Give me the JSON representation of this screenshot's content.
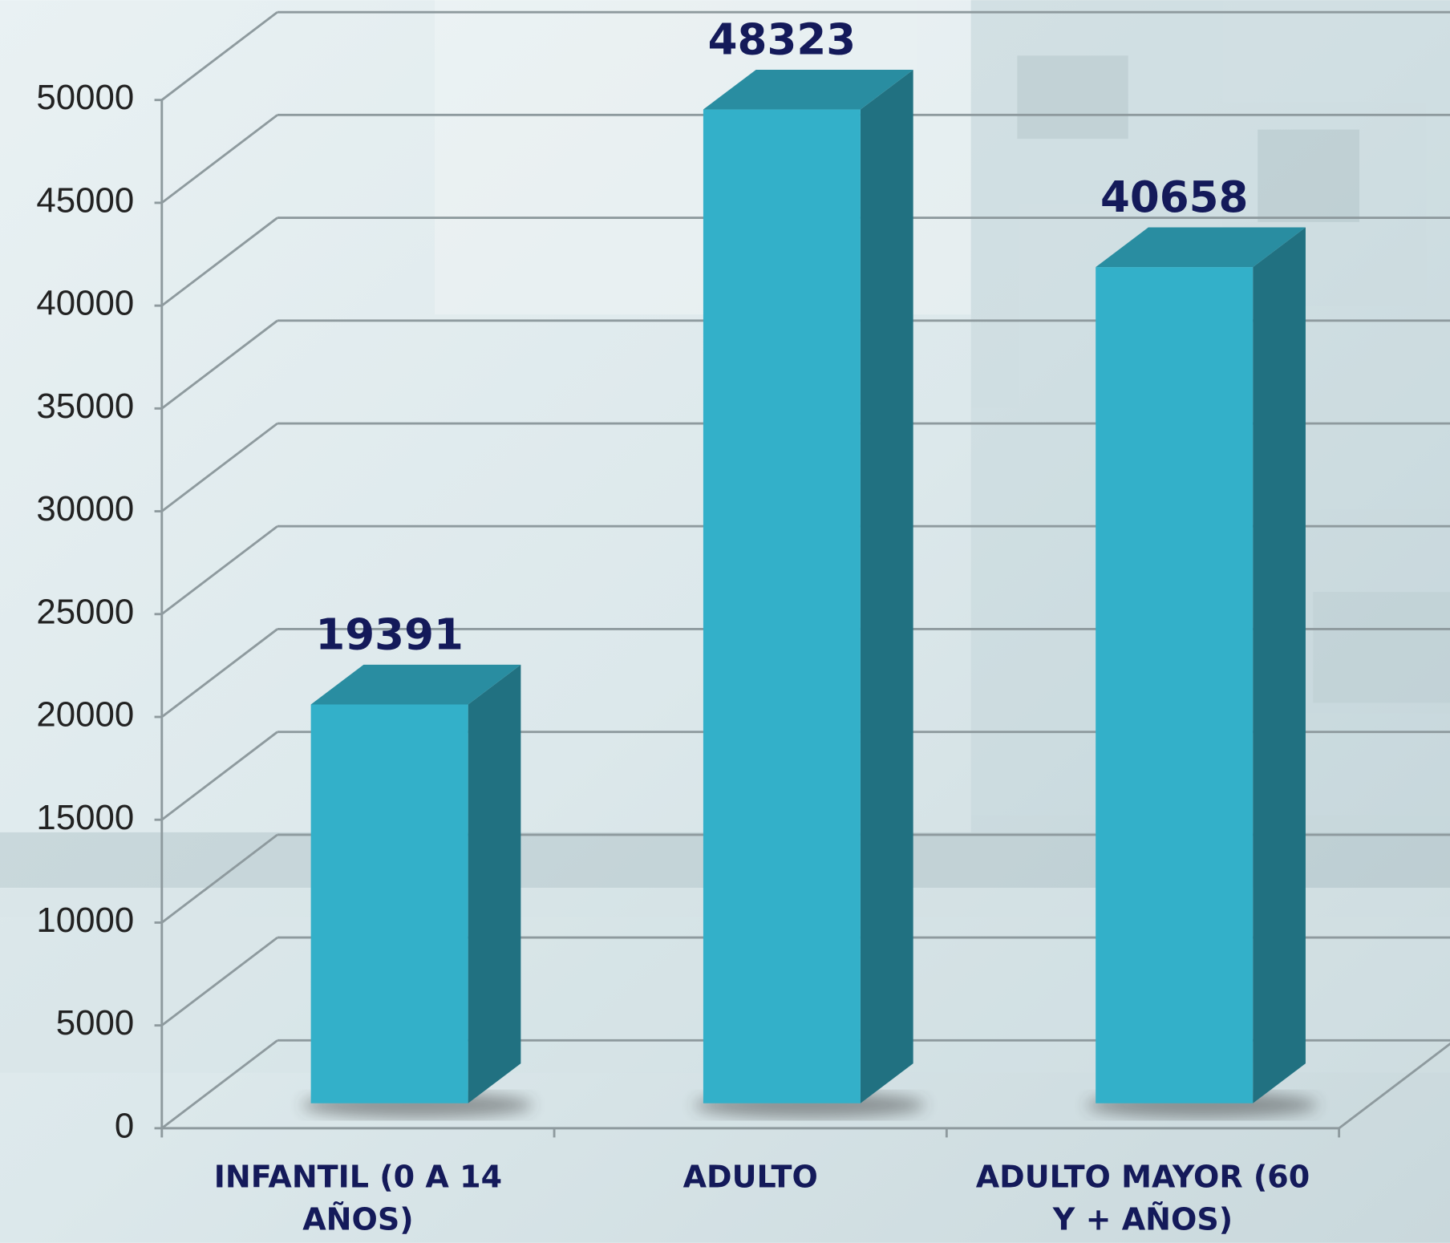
{
  "chart_data": {
    "type": "bar3d",
    "categories": [
      "INFANTIL (0 A 14 AÑOS)",
      "ADULTO",
      "ADULTO MAYOR (60 Y + AÑOS)"
    ],
    "values": [
      19391,
      48323,
      40658
    ],
    "color": "#33b0c9",
    "ylim": [
      0,
      50000
    ],
    "yticks": [
      0,
      5000,
      10000,
      15000,
      20000,
      25000,
      30000,
      35000,
      40000,
      45000,
      50000
    ],
    "grid": true
  }
}
